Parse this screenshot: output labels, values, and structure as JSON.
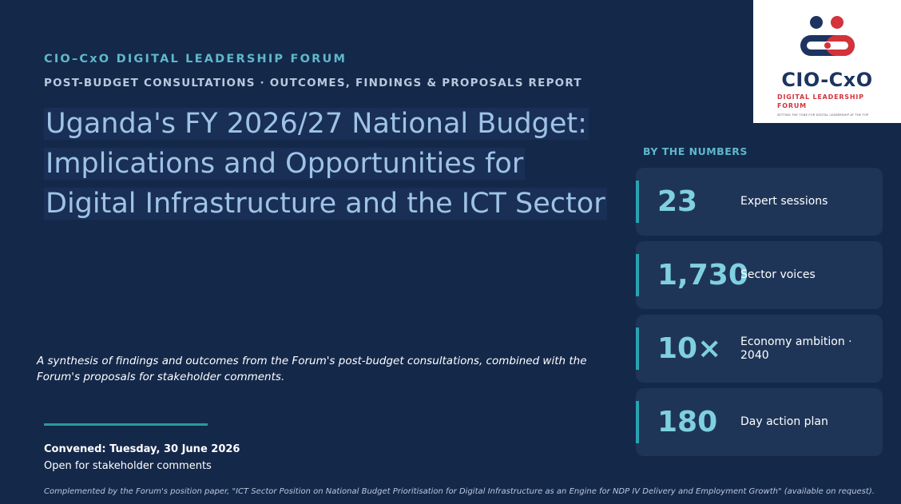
{
  "header": {
    "eyebrow": "CIO–CxO DIGITAL LEADERSHIP FORUM",
    "subhead": "POST-BUDGET CONSULTATIONS · OUTCOMES, FINDINGS & PROPOSALS REPORT",
    "title_lines": [
      "Uganda's FY 2026/27 National Budget:",
      "Implications and Opportunities for",
      "Digital Infrastructure and the ICT Sector"
    ]
  },
  "synopsis": "A synthesis of findings and outcomes from the Forum's post-budget consultations, combined with the Forum's proposals for stakeholder comments.",
  "meta": {
    "convened": "Convened: Tuesday, 30 June 2026",
    "status": "Open for stakeholder comments"
  },
  "footer_note": "Complemented by the Forum's position paper, \"ICT Sector Position on National Budget Prioritisation for Digital Infrastructure as an Engine for NDP IV Delivery and Employment Growth\" (available on request).",
  "numbers": {
    "title": "BY THE NUMBERS",
    "items": [
      {
        "value": "23",
        "label": "Expert sessions"
      },
      {
        "value": "1,730",
        "label": "Sector voices"
      },
      {
        "value": "10×",
        "label": "Economy ambition · 2040"
      },
      {
        "value": "180",
        "label": "Day action plan"
      }
    ]
  },
  "logo": {
    "name": "CIO-CxO",
    "line1": "DIGITAL LEADERSHIP",
    "line2": "FORUM",
    "tagline": "SETTING THE TONE FOR DIGITAL LEADERSHIP AT THE TOP",
    "colors": {
      "navy": "#1d3461",
      "red": "#d3333a"
    }
  },
  "colors": {
    "background": "#14284a",
    "accent_teal": "#5fb8c9",
    "title_blue": "#9ec3e6",
    "card": "#1f3558"
  }
}
